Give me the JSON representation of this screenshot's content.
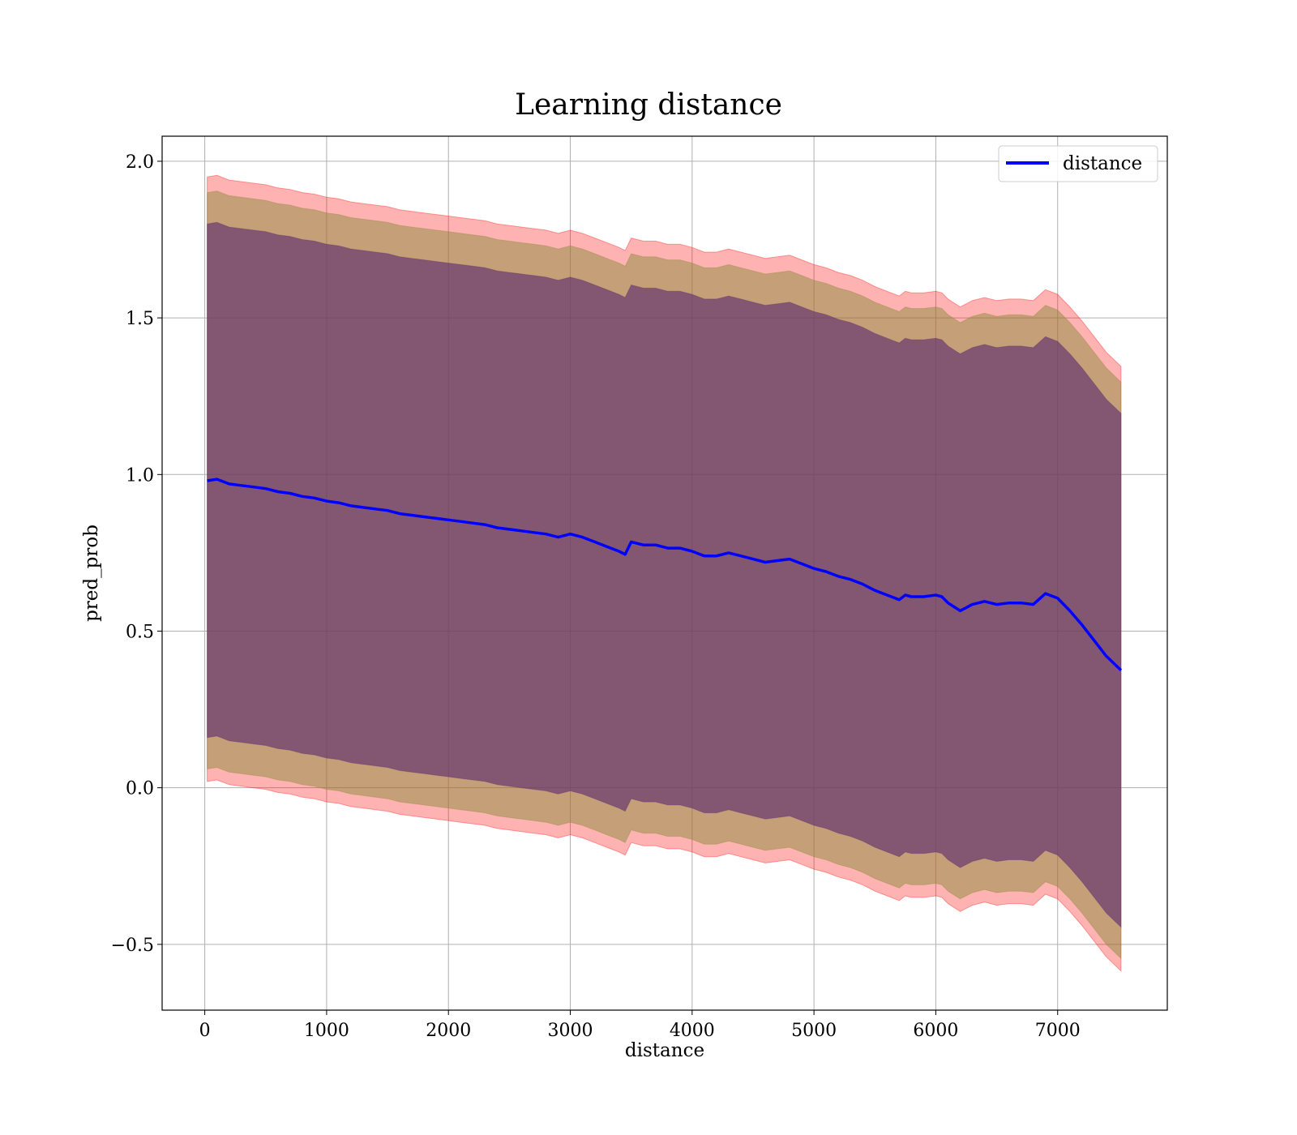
{
  "chart_data": {
    "type": "area",
    "title": "Learning distance",
    "xlabel": "distance",
    "ylabel": "pred_prob",
    "xlim": [
      -350,
      7900
    ],
    "ylim": [
      -0.71,
      2.08
    ],
    "xticks": [
      0,
      1000,
      2000,
      3000,
      4000,
      5000,
      6000,
      7000
    ],
    "xtick_labels": [
      "0",
      "1000",
      "2000",
      "3000",
      "4000",
      "5000",
      "6000",
      "7000"
    ],
    "yticks": [
      -0.5,
      0.0,
      0.5,
      1.0,
      1.5,
      2.0
    ],
    "ytick_labels": [
      "−0.5",
      "0.0",
      "0.5",
      "1.0",
      "1.5",
      "2.0"
    ],
    "grid": true,
    "legend_position": "top-right",
    "colors": {
      "line": "#0000ff",
      "outer_band": "#ff0000",
      "middle_band": "#8b8b3c",
      "inner_band": "#5b2c6f",
      "grid": "#b0b0b0"
    },
    "x": [
      20,
      100,
      200,
      300,
      400,
      500,
      600,
      700,
      800,
      900,
      1000,
      1100,
      1200,
      1300,
      1400,
      1500,
      1600,
      1700,
      1800,
      1900,
      2000,
      2100,
      2200,
      2300,
      2400,
      2500,
      2600,
      2700,
      2800,
      2900,
      3000,
      3100,
      3200,
      3300,
      3400,
      3450,
      3500,
      3600,
      3700,
      3800,
      3900,
      4000,
      4100,
      4200,
      4300,
      4400,
      4500,
      4600,
      4700,
      4800,
      4900,
      5000,
      5100,
      5200,
      5300,
      5400,
      5500,
      5600,
      5700,
      5750,
      5800,
      5900,
      6000,
      6050,
      6100,
      6200,
      6300,
      6400,
      6500,
      6600,
      6700,
      6800,
      6900,
      7000,
      7100,
      7200,
      7300,
      7400,
      7520
    ],
    "series": [
      {
        "name": "distance",
        "role": "mean",
        "values": [
          0.98,
          0.985,
          0.97,
          0.965,
          0.96,
          0.955,
          0.945,
          0.94,
          0.93,
          0.925,
          0.915,
          0.91,
          0.9,
          0.895,
          0.89,
          0.885,
          0.875,
          0.87,
          0.865,
          0.86,
          0.855,
          0.85,
          0.845,
          0.84,
          0.83,
          0.825,
          0.82,
          0.815,
          0.81,
          0.8,
          0.81,
          0.8,
          0.785,
          0.77,
          0.755,
          0.745,
          0.785,
          0.775,
          0.775,
          0.765,
          0.765,
          0.755,
          0.74,
          0.74,
          0.75,
          0.74,
          0.73,
          0.72,
          0.725,
          0.73,
          0.715,
          0.7,
          0.69,
          0.675,
          0.665,
          0.65,
          0.63,
          0.615,
          0.6,
          0.615,
          0.61,
          0.61,
          0.615,
          0.61,
          0.59,
          0.565,
          0.585,
          0.595,
          0.585,
          0.59,
          0.59,
          0.585,
          0.62,
          0.605,
          0.565,
          0.52,
          0.47,
          0.42,
          0.375
        ]
      }
    ],
    "bands": [
      {
        "role": "outer",
        "lower_offset": -0.96,
        "upper_offset": 0.97
      },
      {
        "role": "middle",
        "lower_offset": -0.92,
        "upper_offset": 0.92
      },
      {
        "role": "inner",
        "lower_offset": -0.82,
        "upper_offset": 0.82
      }
    ]
  }
}
